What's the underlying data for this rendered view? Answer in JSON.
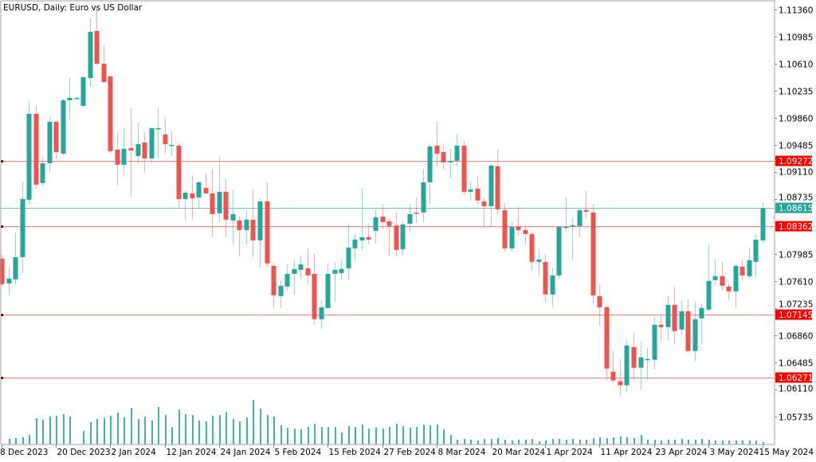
{
  "chart_data": {
    "type": "candlestick",
    "title": "EURUSD, Daily:  Euro vs US Dollar",
    "symbol": "EURUSD",
    "timeframe": "Daily",
    "ylim": [
      1.056,
      1.1145
    ],
    "grid": false,
    "colors": {
      "bull": "#26a69a",
      "bear": "#ef5350",
      "level": "#ff0000",
      "bid": "#26a69a",
      "volume": "#26a69a",
      "axis": "#a0a0a0"
    },
    "y_ticks": [
      "1.11360",
      "1.10985",
      "1.10610",
      "1.10235",
      "1.09860",
      "1.09485",
      "1.09110",
      "1.08735",
      "1.07985",
      "1.07610",
      "1.07235",
      "1.06860",
      "1.06485",
      "1.06110",
      "1.05735"
    ],
    "x_ticks": [
      "8 Dec 2023",
      "20 Dec 2023",
      "2 Jan 2024",
      "12 Jan 2024",
      "24 Jan 2024",
      "5 Feb 2024",
      "15 Feb 2024",
      "27 Feb 2024",
      "8 Mar 2024",
      "20 Mar 2024",
      "1 Apr 2024",
      "11 Apr 2024",
      "23 Apr 2024",
      "3 May 2024",
      "15 May 2024"
    ],
    "x_tick_every_bars": 8,
    "levels": [
      {
        "price": 1.09272,
        "label": "1.09272",
        "kind": "level"
      },
      {
        "price": 1.08362,
        "label": "1.08362",
        "kind": "level"
      },
      {
        "price": 1.07145,
        "label": "1.07145",
        "kind": "level"
      },
      {
        "price": 1.06271,
        "label": "1.06271",
        "kind": "level"
      }
    ],
    "bid": {
      "price": 1.08615,
      "label": "1.08615"
    },
    "ohlc_order": [
      "open",
      "high",
      "low",
      "close"
    ],
    "ohlc": [
      [
        1.07917,
        1.07972,
        1.07532,
        1.07565
      ],
      [
        1.07576,
        1.07785,
        1.07411,
        1.07642
      ],
      [
        1.07631,
        1.0828,
        1.07554,
        1.07939
      ],
      [
        1.07939,
        1.08973,
        1.0773,
        1.08742
      ],
      [
        1.08731,
        1.10095,
        1.08665,
        1.09919
      ],
      [
        1.09919,
        1.1004,
        1.08885,
        1.0894
      ],
      [
        1.08962,
        1.09314,
        1.08929,
        1.09237
      ],
      [
        1.09237,
        1.09875,
        1.09105,
        1.09809
      ],
      [
        1.09809,
        1.09831,
        1.09292,
        1.09391
      ],
      [
        1.09369,
        1.10128,
        1.09347,
        1.10106
      ],
      [
        1.10106,
        1.10414,
        1.09842,
        1.10139
      ],
      [
        1.10128,
        1.10161,
        1.10117,
        1.10139
      ],
      [
        1.10029,
        1.10447,
        1.10007,
        1.10425
      ],
      [
        1.10414,
        1.11239,
        1.10293,
        1.11052
      ],
      [
        1.11063,
        1.11382,
        1.1059,
        1.10612
      ],
      [
        1.10612,
        1.10854,
        1.10348,
        1.10359
      ],
      [
        1.10436,
        1.10447,
        1.0938,
        1.09402
      ],
      [
        1.09424,
        1.09655,
        1.08929,
        1.09215
      ],
      [
        1.09215,
        1.09721,
        1.09061,
        1.09435
      ],
      [
        1.09446,
        1.09996,
        1.08775,
        1.09413
      ],
      [
        1.09336,
        1.09798,
        1.09226,
        1.09501
      ],
      [
        1.09523,
        1.09666,
        1.09105,
        1.09303
      ],
      [
        1.09303,
        1.09732,
        1.09237,
        1.09721
      ],
      [
        1.0971,
        1.10007,
        1.09303,
        1.09721
      ],
      [
        1.09633,
        1.09875,
        1.09369,
        1.09501
      ],
      [
        1.09479,
        1.09677,
        1.09336,
        1.0949
      ],
      [
        1.09479,
        1.09512,
        1.0861,
        1.08742
      ],
      [
        1.08742,
        1.08852,
        1.08445,
        1.0883
      ],
      [
        1.08819,
        1.09072,
        1.08467,
        1.08753
      ],
      [
        1.08764,
        1.08984,
        1.08599,
        1.08973
      ],
      [
        1.08896,
        1.09094,
        1.08808,
        1.08819
      ],
      [
        1.08819,
        1.0916,
        1.08214,
        1.08533
      ],
      [
        1.08544,
        1.09325,
        1.08423,
        1.08841
      ],
      [
        1.08841,
        1.09028,
        1.08214,
        1.08456
      ],
      [
        1.08445,
        1.08863,
        1.08126,
        1.08533
      ],
      [
        1.08445,
        1.085,
        1.0795,
        1.08313
      ],
      [
        1.08313,
        1.08577,
        1.08115,
        1.08456
      ],
      [
        1.08456,
        1.08874,
        1.07939,
        1.0817
      ],
      [
        1.0817,
        1.08753,
        1.07796,
        1.08709
      ],
      [
        1.08709,
        1.08973,
        1.07807,
        1.07851
      ],
      [
        1.07818,
        1.07862,
        1.07235,
        1.07411
      ],
      [
        1.074,
        1.0762,
        1.07235,
        1.07543
      ],
      [
        1.07532,
        1.0784,
        1.07477,
        1.07708
      ],
      [
        1.07708,
        1.07895,
        1.07422,
        1.07774
      ],
      [
        1.07763,
        1.0795,
        1.07631,
        1.0784
      ],
      [
        1.07785,
        1.0806,
        1.07565,
        1.07686
      ],
      [
        1.07708,
        1.07983,
        1.07004,
        1.07081
      ],
      [
        1.07081,
        1.07345,
        1.06949,
        1.07246
      ],
      [
        1.07235,
        1.07851,
        1.07224,
        1.07708
      ],
      [
        1.07708,
        1.07873,
        1.07323,
        1.07763
      ],
      [
        1.07719,
        1.07895,
        1.0762,
        1.07774
      ],
      [
        1.07785,
        1.0839,
        1.0762,
        1.08071
      ],
      [
        1.0806,
        1.08258,
        1.07895,
        1.08181
      ],
      [
        1.0817,
        1.08885,
        1.08038,
        1.08214
      ],
      [
        1.08214,
        1.0839,
        1.08115,
        1.08181
      ],
      [
        1.08302,
        1.08599,
        1.08126,
        1.08489
      ],
      [
        1.085,
        1.08665,
        1.08335,
        1.08423
      ],
      [
        1.08434,
        1.08478,
        1.07961,
        1.08368
      ],
      [
        1.08379,
        1.08555,
        1.0795,
        1.08038
      ],
      [
        1.08049,
        1.08434,
        1.07961,
        1.0839
      ],
      [
        1.08401,
        1.08665,
        1.08291,
        1.08533
      ],
      [
        1.08555,
        1.08764,
        1.08412,
        1.08544
      ],
      [
        1.08555,
        1.0916,
        1.08423,
        1.08973
      ],
      [
        1.08973,
        1.09501,
        1.08676,
        1.09468
      ],
      [
        1.09479,
        1.0982,
        1.09193,
        1.09369
      ],
      [
        1.09391,
        1.09479,
        1.09149,
        1.09248
      ],
      [
        1.09248,
        1.09435,
        1.09028,
        1.0927
      ],
      [
        1.0927,
        1.09644,
        1.09204,
        1.09479
      ],
      [
        1.09479,
        1.09545,
        1.08797,
        1.08841
      ],
      [
        1.08841,
        1.08995,
        1.08731,
        1.08874
      ],
      [
        1.08885,
        1.09061,
        1.08665,
        1.0872
      ],
      [
        1.08709,
        1.08764,
        1.08346,
        1.08643
      ],
      [
        1.08643,
        1.09226,
        1.08368,
        1.09204
      ],
      [
        1.09193,
        1.09424,
        1.08533,
        1.08599
      ],
      [
        1.08588,
        1.08687,
        1.08016,
        1.0806
      ],
      [
        1.0806,
        1.08423,
        1.08016,
        1.08357
      ],
      [
        1.08357,
        1.08643,
        1.08236,
        1.08313
      ],
      [
        1.08313,
        1.0839,
        1.08115,
        1.08258
      ],
      [
        1.08258,
        1.08269,
        1.07752,
        1.07873
      ],
      [
        1.07873,
        1.08049,
        1.07675,
        1.07906
      ],
      [
        1.07873,
        1.07983,
        1.07312,
        1.07422
      ],
      [
        1.07422,
        1.07785,
        1.07246,
        1.07686
      ],
      [
        1.07686,
        1.08368,
        1.07642,
        1.08357
      ],
      [
        1.08346,
        1.08764,
        1.08291,
        1.08357
      ],
      [
        1.08368,
        1.08478,
        1.07906,
        1.08379
      ],
      [
        1.08368,
        1.08621,
        1.08214,
        1.08588
      ],
      [
        1.08588,
        1.08852,
        1.08478,
        1.08566
      ],
      [
        1.08555,
        1.08665,
        1.0729,
        1.07411
      ],
      [
        1.074,
        1.07565,
        1.06993,
        1.07246
      ],
      [
        1.07246,
        1.07279,
        1.06234,
        1.06399
      ],
      [
        1.06355,
        1.06641,
        1.0619,
        1.06234
      ],
      [
        1.06223,
        1.06531,
        1.06014,
        1.06168
      ],
      [
        1.06168,
        1.06795,
        1.06069,
        1.06718
      ],
      [
        1.06696,
        1.06894,
        1.06245,
        1.0641
      ],
      [
        1.0641,
        1.06773,
        1.06102,
        1.06553
      ],
      [
        1.0652,
        1.06685,
        1.06245,
        1.06531
      ],
      [
        1.0652,
        1.07114,
        1.06388,
        1.07004
      ],
      [
        1.07004,
        1.07136,
        1.06784,
        1.06971
      ],
      [
        1.06971,
        1.074,
        1.06784,
        1.07279
      ],
      [
        1.07279,
        1.07521,
        1.06729,
        1.06916
      ],
      [
        1.06938,
        1.07334,
        1.06861,
        1.07191
      ],
      [
        1.07191,
        1.07356,
        1.06619,
        1.06641
      ],
      [
        1.06641,
        1.07323,
        1.06498,
        1.07081
      ],
      [
        1.07092,
        1.0729,
        1.06729,
        1.07235
      ],
      [
        1.07213,
        1.08115,
        1.07191,
        1.07609
      ],
      [
        1.0762,
        1.07906,
        1.07554,
        1.07675
      ],
      [
        1.07675,
        1.07873,
        1.07477,
        1.07543
      ],
      [
        1.07532,
        1.07576,
        1.07345,
        1.07466
      ],
      [
        1.07466,
        1.0784,
        1.07235,
        1.07818
      ],
      [
        1.07807,
        1.07906,
        1.07609,
        1.07686
      ],
      [
        1.07675,
        1.08071,
        1.07642,
        1.07895
      ],
      [
        1.07873,
        1.08258,
        1.07664,
        1.08181
      ],
      [
        1.0817,
        1.08698,
        1.08126,
        1.08615
      ]
    ],
    "volume_relative": [
      0,
      7,
      8,
      9,
      12,
      33,
      31,
      35,
      36,
      38,
      35,
      0,
      17,
      28,
      32,
      33,
      36,
      40,
      34,
      46,
      32,
      35,
      30,
      47,
      37,
      22,
      44,
      38,
      37,
      30,
      29,
      36,
      37,
      41,
      32,
      29,
      34,
      56,
      45,
      37,
      35,
      24,
      21,
      20,
      19,
      22,
      26,
      22,
      22,
      22,
      15,
      23,
      22,
      25,
      20,
      21,
      20,
      22,
      26,
      23,
      21,
      22,
      25,
      24,
      25,
      19,
      12,
      6,
      7,
      6,
      5,
      7,
      7,
      8,
      6,
      5,
      6,
      6,
      7,
      4,
      5,
      7,
      7,
      6,
      7,
      6,
      6,
      8,
      9,
      8,
      9,
      10,
      9,
      8,
      12,
      6,
      6,
      5,
      6,
      6,
      7,
      6,
      6,
      7,
      6,
      5,
      5,
      5,
      5,
      5,
      5,
      5,
      3
    ]
  }
}
